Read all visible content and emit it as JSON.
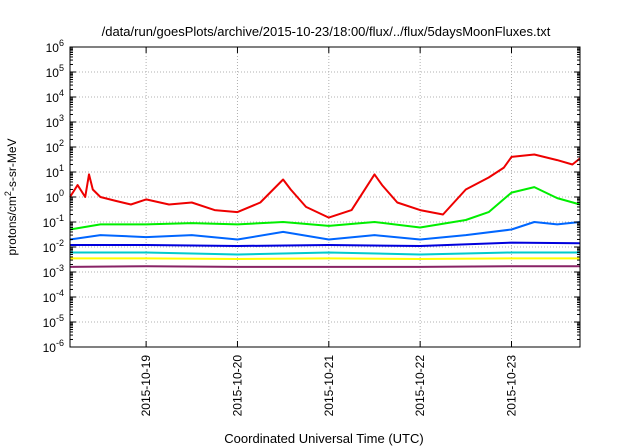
{
  "chart_data": {
    "type": "line",
    "title": "/data/run/goesPlots/archive/2015-10-23/18:00/flux/../flux/5daysMoonFluxes.txt",
    "xlabel": "Coordinated Universal Time (UTC)",
    "ylabel": {
      "base": "protons/cm",
      "sup": "2",
      "rest": "-s-sr-MeV"
    },
    "y_scale": "log",
    "ylim": [
      1e-06,
      1000000.0
    ],
    "xlim": [
      "2015-10-18T04:00",
      "2015-10-23T18:00"
    ],
    "grid": true,
    "legend": "none",
    "y_ticks": [
      {
        "base": "10",
        "exp": "-6",
        "value": 1e-06
      },
      {
        "base": "10",
        "exp": "-5",
        "value": 1e-05
      },
      {
        "base": "10",
        "exp": "-4",
        "value": 0.0001
      },
      {
        "base": "10",
        "exp": "-3",
        "value": 0.001
      },
      {
        "base": "10",
        "exp": "-2",
        "value": 0.01
      },
      {
        "base": "10",
        "exp": "-1",
        "value": 0.1
      },
      {
        "base": "10",
        "exp": "0",
        "value": 1
      },
      {
        "base": "10",
        "exp": "1",
        "value": 10
      },
      {
        "base": "10",
        "exp": "2",
        "value": 100
      },
      {
        "base": "10",
        "exp": "3",
        "value": 1000
      },
      {
        "base": "10",
        "exp": "4",
        "value": 10000
      },
      {
        "base": "10",
        "exp": "5",
        "value": 100000
      },
      {
        "base": "10",
        "exp": "6",
        "value": 1000000
      }
    ],
    "x_ticks": [
      {
        "label": "2015-10-19",
        "value": "2015-10-19T00:00"
      },
      {
        "label": "2015-10-20",
        "value": "2015-10-20T00:00"
      },
      {
        "label": "2015-10-21",
        "value": "2015-10-21T00:00"
      },
      {
        "label": "2015-10-22",
        "value": "2015-10-22T00:00"
      },
      {
        "label": "2015-10-23",
        "value": "2015-10-23T00:00"
      }
    ],
    "series": [
      {
        "color": "#ee0000",
        "x": [
          "2015-10-18T04:00",
          "2015-10-18T06:00",
          "2015-10-18T08:00",
          "2015-10-18T09:00",
          "2015-10-18T10:00",
          "2015-10-18T12:00",
          "2015-10-18T16:00",
          "2015-10-18T20:00",
          "2015-10-19T00:00",
          "2015-10-19T06:00",
          "2015-10-19T12:00",
          "2015-10-19T18:00",
          "2015-10-20T00:00",
          "2015-10-20T06:00",
          "2015-10-20T12:00",
          "2015-10-20T14:00",
          "2015-10-20T18:00",
          "2015-10-21T00:00",
          "2015-10-21T06:00",
          "2015-10-21T12:00",
          "2015-10-21T14:00",
          "2015-10-21T18:00",
          "2015-10-22T00:00",
          "2015-10-22T06:00",
          "2015-10-22T12:00",
          "2015-10-22T18:00",
          "2015-10-22T22:00",
          "2015-10-23T00:00",
          "2015-10-23T06:00",
          "2015-10-23T12:00",
          "2015-10-23T16:00",
          "2015-10-23T18:00"
        ],
        "y": [
          1.0,
          3.0,
          1.0,
          8.0,
          2.0,
          1.0,
          0.7,
          0.5,
          0.8,
          0.5,
          0.6,
          0.3,
          0.25,
          0.6,
          5.0,
          2.0,
          0.4,
          0.15,
          0.3,
          8.0,
          3.0,
          0.6,
          0.3,
          0.2,
          2.0,
          6.0,
          15.0,
          40.0,
          50.0,
          30.0,
          20.0,
          35.0
        ]
      },
      {
        "color": "#00ee00",
        "x": [
          "2015-10-18T04:00",
          "2015-10-18T12:00",
          "2015-10-19T00:00",
          "2015-10-19T12:00",
          "2015-10-20T00:00",
          "2015-10-20T12:00",
          "2015-10-21T00:00",
          "2015-10-21T12:00",
          "2015-10-22T00:00",
          "2015-10-22T12:00",
          "2015-10-22T18:00",
          "2015-10-23T00:00",
          "2015-10-23T06:00",
          "2015-10-23T12:00",
          "2015-10-23T18:00"
        ],
        "y": [
          0.05,
          0.08,
          0.08,
          0.09,
          0.08,
          0.1,
          0.07,
          0.1,
          0.06,
          0.12,
          0.25,
          1.5,
          2.5,
          0.9,
          0.5
        ]
      },
      {
        "color": "#0066ff",
        "x": [
          "2015-10-18T04:00",
          "2015-10-18T12:00",
          "2015-10-19T00:00",
          "2015-10-19T12:00",
          "2015-10-20T00:00",
          "2015-10-20T12:00",
          "2015-10-21T00:00",
          "2015-10-21T12:00",
          "2015-10-22T00:00",
          "2015-10-22T12:00",
          "2015-10-23T00:00",
          "2015-10-23T06:00",
          "2015-10-23T12:00",
          "2015-10-23T18:00"
        ],
        "y": [
          0.02,
          0.03,
          0.025,
          0.03,
          0.02,
          0.04,
          0.02,
          0.03,
          0.02,
          0.03,
          0.05,
          0.1,
          0.08,
          0.1
        ]
      },
      {
        "color": "#0000dd",
        "x": [
          "2015-10-18T04:00",
          "2015-10-19T00:00",
          "2015-10-20T00:00",
          "2015-10-21T00:00",
          "2015-10-22T00:00",
          "2015-10-23T00:00",
          "2015-10-23T18:00"
        ],
        "y": [
          0.012,
          0.012,
          0.011,
          0.012,
          0.011,
          0.015,
          0.014
        ]
      },
      {
        "color": "#00cccc",
        "x": [
          "2015-10-18T04:00",
          "2015-10-19T00:00",
          "2015-10-20T00:00",
          "2015-10-21T00:00",
          "2015-10-22T00:00",
          "2015-10-23T00:00",
          "2015-10-23T18:00"
        ],
        "y": [
          0.006,
          0.006,
          0.005,
          0.006,
          0.005,
          0.006,
          0.006
        ]
      },
      {
        "color": "#ffff00",
        "x": [
          "2015-10-18T04:00",
          "2015-10-19T00:00",
          "2015-10-20T00:00",
          "2015-10-21T00:00",
          "2015-10-22T00:00",
          "2015-10-23T00:00",
          "2015-10-23T18:00"
        ],
        "y": [
          0.0035,
          0.0035,
          0.0033,
          0.0035,
          0.0033,
          0.0035,
          0.0035
        ]
      },
      {
        "color": "#882266",
        "x": [
          "2015-10-18T04:00",
          "2015-10-19T00:00",
          "2015-10-20T00:00",
          "2015-10-21T00:00",
          "2015-10-22T00:00",
          "2015-10-23T00:00",
          "2015-10-23T18:00"
        ],
        "y": [
          0.0016,
          0.0017,
          0.0016,
          0.0016,
          0.0016,
          0.0017,
          0.0017
        ]
      }
    ]
  }
}
